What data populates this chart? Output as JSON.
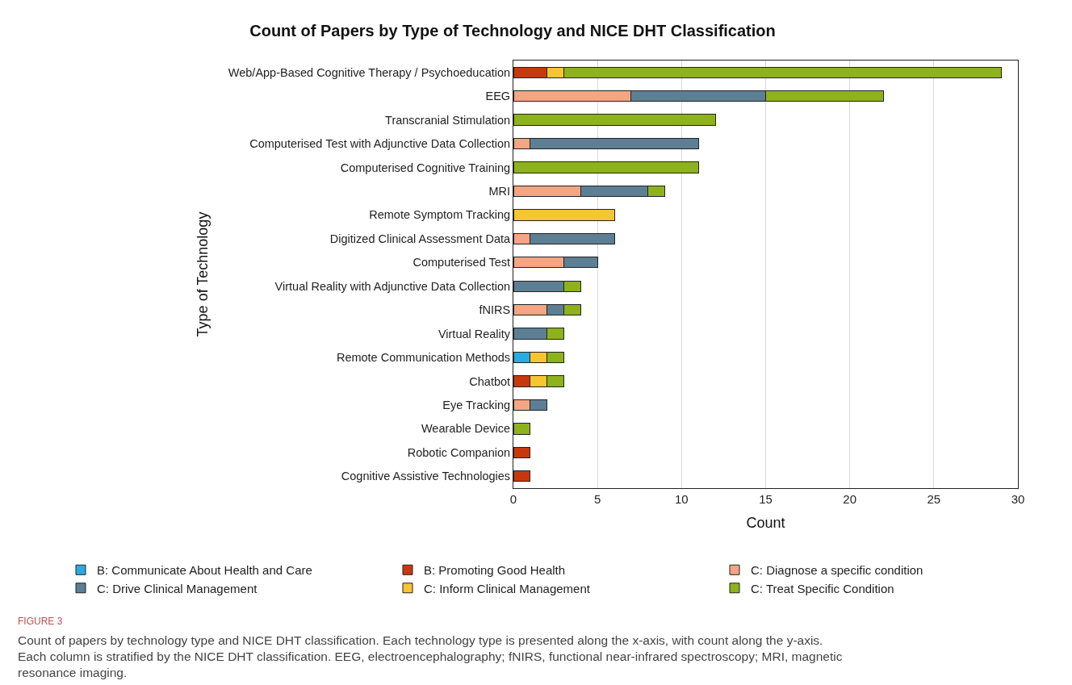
{
  "chart_data": {
    "type": "bar",
    "orientation": "horizontal",
    "stacked": true,
    "title": "Count of Papers by Type of Technology and NICE DHT Classification",
    "xlabel": "Count",
    "ylabel": "Type of Technology",
    "categories": [
      "Web/App-Based Cognitive Therapy / Psychoeducation",
      "EEG",
      "Transcranial Stimulation",
      "Computerised Test with Adjunctive Data Collection",
      "Computerised Cognitive Training",
      "MRI",
      "Remote Symptom Tracking",
      "Digitized Clinical Assessment Data",
      "Computerised Test",
      "Virtual Reality with Adjunctive Data Collection",
      "fNIRS",
      "Virtual Reality",
      "Remote Communication Methods",
      "Chatbot",
      "Eye Tracking",
      "Wearable Device",
      "Robotic Companion",
      "Cognitive Assistive Technologies"
    ],
    "series": [
      {
        "name": "B: Communicate About Health and Care",
        "color": "#29abe2",
        "values": [
          null,
          null,
          null,
          null,
          null,
          null,
          null,
          null,
          null,
          null,
          null,
          null,
          1,
          null,
          null,
          null,
          null,
          null
        ]
      },
      {
        "name": "B: Promoting Good Health",
        "color": "#c8380e",
        "values": [
          2,
          null,
          null,
          null,
          null,
          null,
          null,
          null,
          null,
          null,
          null,
          null,
          null,
          1,
          null,
          null,
          1,
          1
        ]
      },
      {
        "name": "C: Diagnose a specific condition",
        "color": "#f4a582",
        "values": [
          null,
          7,
          null,
          1,
          null,
          4,
          null,
          1,
          3,
          null,
          2,
          null,
          null,
          null,
          1,
          null,
          null,
          null
        ]
      },
      {
        "name": "C: Drive Clinical Management",
        "color": "#5d7f94",
        "values": [
          null,
          8,
          null,
          10,
          null,
          4,
          null,
          5,
          2,
          3,
          1,
          2,
          null,
          null,
          1,
          null,
          null,
          null
        ]
      },
      {
        "name": "C: Inform Clinical Management",
        "color": "#f7c531",
        "values": [
          1,
          null,
          null,
          null,
          null,
          null,
          6,
          null,
          null,
          null,
          null,
          null,
          1,
          1,
          null,
          null,
          null,
          null
        ]
      },
      {
        "name": "C: Treat Specific Condition",
        "color": "#8db21c",
        "values": [
          26,
          7,
          12,
          null,
          11,
          1,
          null,
          null,
          null,
          1,
          1,
          1,
          1,
          1,
          null,
          1,
          null,
          null
        ]
      }
    ],
    "xlim": [
      0,
      30
    ],
    "xticks": [
      0,
      5,
      10,
      15,
      20,
      25,
      30
    ],
    "grid": "x",
    "legend": "bottom",
    "annotations": [
      "FIGURE 3",
      "Count of papers by technology type and NICE DHT classification. Each technology type is presented along the x-axis, with count along the y-axis. Each column is stratified by the NICE DHT classification. EEG, electroencephalography; fNIRS, functional near-infrared spectroscopy; MRI, magnetic resonance imaging."
    ]
  }
}
